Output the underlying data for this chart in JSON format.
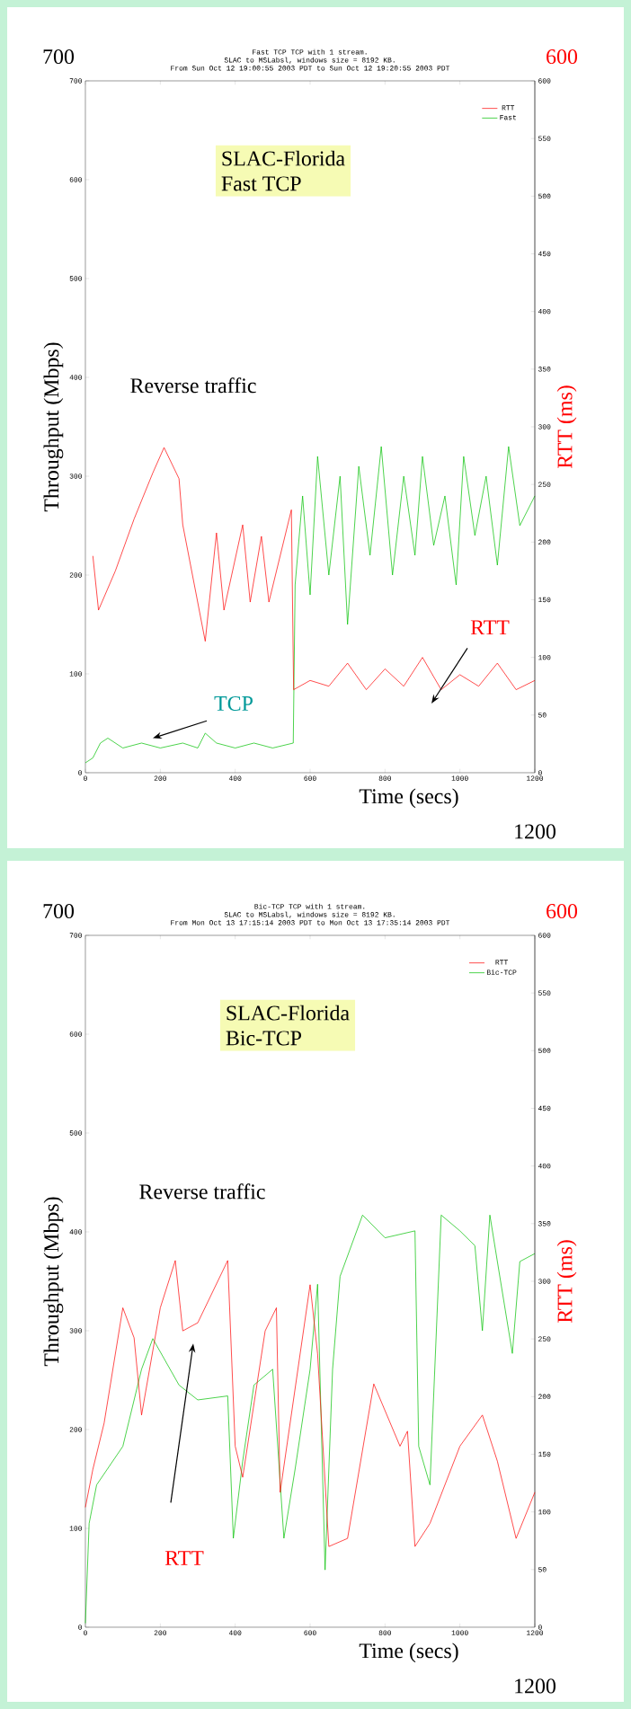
{
  "chart_data": [
    {
      "type": "line",
      "title": "Fast TCP TCP with 1 stream.",
      "subtitle": "SLAC to MSLabsl, windows size = 8192 KB.",
      "xlabel": "Time (secs)",
      "ylabel": "Throughput (Mbps)",
      "y2label": "RTT (ms)",
      "xlim": [
        0,
        1200
      ],
      "xticks": [
        0,
        200,
        400,
        600,
        800,
        1000,
        1200
      ],
      "ylim": [
        0,
        700
      ],
      "yticks": [
        0,
        100,
        200,
        300,
        400,
        500,
        600,
        700
      ],
      "y2lim": [
        0,
        600
      ],
      "y2ticks": [
        0,
        50,
        100,
        150,
        200,
        250,
        300,
        350,
        400,
        450,
        500,
        550,
        600
      ],
      "legend": "top right",
      "marker": "none",
      "annotations": [
        "From Sun Oct 12 19:00:55 2003 PDT to Sun Oct 12 19:20:55 2003 PDT",
        "SLAC-Florida",
        "Fast TCP",
        "Reverse traffic",
        "RTT",
        "TCP",
        "700",
        "600",
        "1200"
      ],
      "series": [
        {
          "name": "RTT",
          "color": "#ff0000",
          "axis": "y2",
          "x": [
            20,
            35,
            80,
            130,
            180,
            210,
            250,
            260,
            320,
            350,
            370,
            420,
            440,
            470,
            490,
            550,
            556,
            600,
            650,
            700,
            750,
            800,
            850,
            900,
            950,
            1000,
            1050,
            1100,
            1150,
            1200
          ],
          "values": [
            188,
            141,
            175,
            220,
            260,
            282,
            255,
            215,
            114,
            208,
            141,
            215,
            148,
            205,
            148,
            228,
            72,
            80,
            75,
            95,
            72,
            90,
            75,
            100,
            72,
            85,
            75,
            95,
            72,
            80
          ]
        },
        {
          "name": "Fast",
          "color": "#00c000",
          "axis": "y",
          "x": [
            0,
            20,
            40,
            60,
            100,
            150,
            200,
            260,
            300,
            320,
            350,
            400,
            450,
            500,
            555,
            560,
            580,
            600,
            620,
            650,
            680,
            700,
            730,
            760,
            790,
            820,
            850,
            880,
            900,
            930,
            960,
            990,
            1010,
            1040,
            1070,
            1100,
            1130,
            1160,
            1200
          ],
          "values": [
            10,
            15,
            30,
            35,
            25,
            30,
            25,
            30,
            25,
            40,
            30,
            25,
            30,
            25,
            30,
            190,
            280,
            180,
            320,
            200,
            300,
            150,
            310,
            220,
            330,
            200,
            300,
            220,
            320,
            230,
            280,
            190,
            320,
            240,
            300,
            210,
            330,
            250,
            280
          ]
        }
      ]
    },
    {
      "type": "line",
      "title": "Bic-TCP TCP with 1 stream.",
      "subtitle": "SLAC to MSLabsl, windows size = 8192 KB.",
      "xlabel": "Time (secs)",
      "ylabel": "Throughput (Mbps)",
      "y2label": "RTT (ms)",
      "xlim": [
        0,
        1200
      ],
      "xticks": [
        0,
        200,
        400,
        600,
        800,
        1000,
        1200
      ],
      "ylim": [
        0,
        700
      ],
      "yticks": [
        0,
        100,
        200,
        300,
        400,
        500,
        600,
        700
      ],
      "y2lim": [
        0,
        600
      ],
      "y2ticks": [
        0,
        50,
        100,
        150,
        200,
        250,
        300,
        350,
        400,
        450,
        500,
        550,
        600
      ],
      "legend": "top right",
      "marker": "none",
      "annotations": [
        "From Mon Oct 13 17:15:14 2003 PDT to Mon Oct 13 17:35:14 2003 PDT",
        "SLAC-Florida",
        "Bic-TCP",
        "Reverse traffic",
        "RTT",
        "700",
        "600",
        "1200"
      ],
      "series": [
        {
          "name": "RTT",
          "color": "#ff0000",
          "axis": "y2",
          "x": [
            0,
            20,
            50,
            100,
            130,
            150,
            200,
            240,
            260,
            300,
            380,
            400,
            420,
            480,
            510,
            520,
            600,
            620,
            650,
            700,
            770,
            840,
            860,
            880,
            920,
            1000,
            1060,
            1100,
            1150,
            1200
          ],
          "values": [
            104,
            137,
            177,
            277,
            251,
            184,
            277,
            318,
            257,
            264,
            318,
            157,
            130,
            257,
            277,
            117,
            297,
            237,
            70,
            77,
            211,
            157,
            170,
            70,
            90,
            157,
            184,
            144,
            77,
            117
          ]
        },
        {
          "name": "Bic-TCP",
          "color": "#00c000",
          "axis": "y",
          "x": [
            0,
            10,
            30,
            100,
            150,
            180,
            250,
            300,
            380,
            395,
            420,
            450,
            500,
            530,
            560,
            600,
            620,
            640,
            660,
            680,
            740,
            800,
            880,
            890,
            920,
            950,
            1000,
            1040,
            1060,
            1080,
            1100,
            1140,
            1160,
            1200
          ],
          "values": [
            4,
            105,
            144,
            183,
            261,
            292,
            245,
            230,
            234,
            90,
            168,
            245,
            261,
            90,
            160,
            261,
            347,
            58,
            261,
            355,
            417,
            394,
            401,
            183,
            144,
            417,
            401,
            386,
            300,
            417,
            370,
            277,
            370,
            378
          ]
        }
      ]
    }
  ]
}
